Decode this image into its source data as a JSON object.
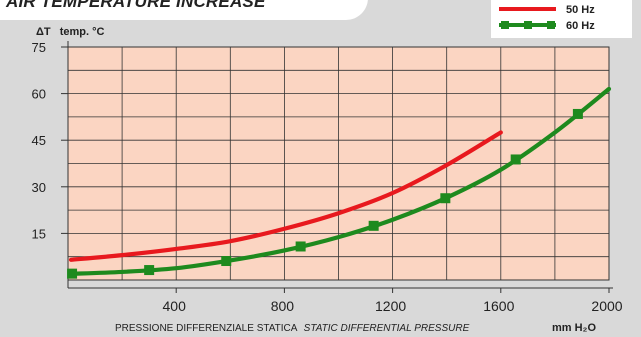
{
  "chart_data": {
    "type": "line",
    "title": "AIR TEMPERATURE INCREASE",
    "ylabel_symbol": "ΔT",
    "ylabel": "temp. °C",
    "xlabel_it": "PRESSIONE DIFFERENZIALE STATICA",
    "xlabel_en": "STATIC DIFFERENTIAL PRESSURE",
    "xunit": "mm H₂O",
    "xlim": [
      0,
      2000
    ],
    "ylim": [
      0,
      75
    ],
    "xticks": [
      400,
      800,
      1200,
      1600,
      2000
    ],
    "yticks": [
      15,
      30,
      45,
      60,
      75
    ],
    "grid": true,
    "legend_position": "top-right",
    "plot_background": "#fbd5c2",
    "series": [
      {
        "name": "50 Hz",
        "color": "#e8191e",
        "marker": "none",
        "x": [
          0,
          200,
          400,
          600,
          800,
          1000,
          1200,
          1400,
          1600
        ],
        "y": [
          6.5,
          8,
          10,
          12.5,
          16.5,
          21.5,
          28,
          37,
          47.5
        ]
      },
      {
        "name": "60 Hz",
        "color": "#1e8a1e",
        "marker": "square",
        "x": [
          0,
          200,
          400,
          600,
          800,
          1000,
          1200,
          1400,
          1600,
          1800,
          2000
        ],
        "y": [
          2,
          2.6,
          3.8,
          6.3,
          9.5,
          13.8,
          19.4,
          26.5,
          35.5,
          47.5,
          61.5
        ],
        "marker_x": [
          15,
          300,
          585,
          860,
          1130,
          1395,
          1655,
          1885
        ]
      }
    ]
  }
}
